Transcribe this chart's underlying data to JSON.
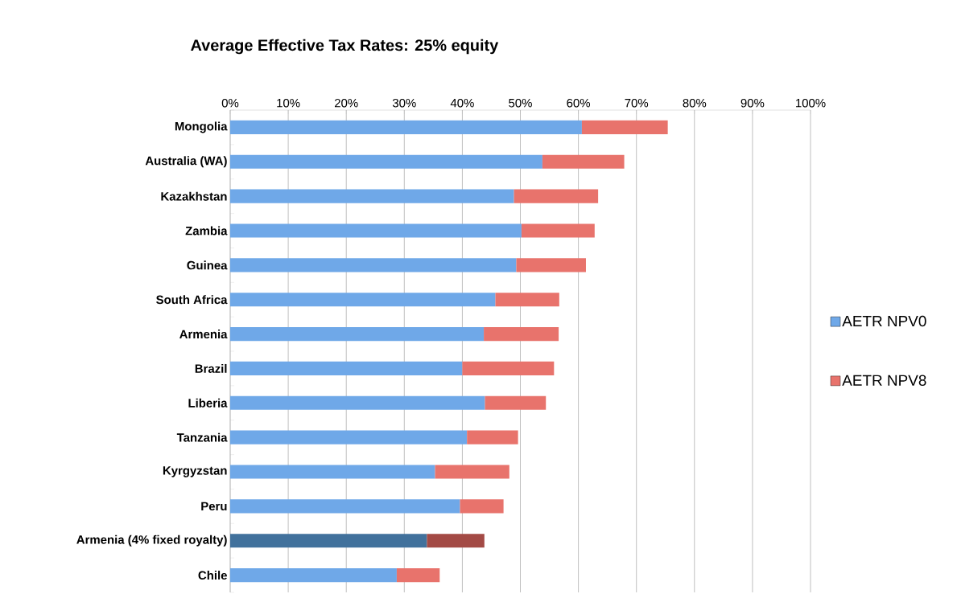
{
  "chart_data": {
    "type": "bar",
    "orientation": "horizontal",
    "stacked": true,
    "title": "Average Effective Tax Rates: 25% equity",
    "categories": [
      "Mongolia",
      "Australia (WA)",
      "Kazakhstan",
      "Zambia",
      "Guinea",
      "South Africa",
      "Armenia",
      "Brazil",
      "Liberia",
      "Tanzania",
      "Kyrgyzstan",
      "Peru",
      "Armenia (4% fixed royalty)",
      "Chile"
    ],
    "series": [
      {
        "name": "AETR NPV0",
        "color": "#6fa8e8",
        "colors": [
          "#6fa8e8",
          "#6fa8e8",
          "#6fa8e8",
          "#6fa8e8",
          "#6fa8e8",
          "#6fa8e8",
          "#6fa8e8",
          "#6fa8e8",
          "#6fa8e8",
          "#6fa8e8",
          "#6fa8e8",
          "#6fa8e8",
          "#41719c",
          "#6fa8e8"
        ],
        "values": [
          60.6,
          53.8,
          48.9,
          50.2,
          49.3,
          45.7,
          43.7,
          40.0,
          43.9,
          40.8,
          35.3,
          39.6,
          33.9,
          28.7
        ]
      },
      {
        "name": "AETR NPV8",
        "color": "#e8736c",
        "colors": [
          "#e8736c",
          "#e8736c",
          "#e8736c",
          "#e8736c",
          "#e8736c",
          "#e8736c",
          "#e8736c",
          "#e8736c",
          "#e8736c",
          "#e8736c",
          "#e8736c",
          "#e8736c",
          "#a34a45",
          "#e8736c"
        ],
        "values": [
          14.8,
          14.1,
          14.5,
          12.6,
          12.0,
          11.0,
          12.9,
          15.8,
          10.5,
          8.8,
          12.8,
          7.5,
          9.9,
          7.4
        ]
      }
    ],
    "xlim": [
      0,
      100
    ],
    "xticks": [
      {
        "value": 0,
        "label": "0%"
      },
      {
        "value": 10,
        "label": "10%"
      },
      {
        "value": 20,
        "label": "20%"
      },
      {
        "value": 30,
        "label": "30%"
      },
      {
        "value": 40,
        "label": "40%"
      },
      {
        "value": 50,
        "label": "50%"
      },
      {
        "value": 60,
        "label": "60%"
      },
      {
        "value": 70,
        "label": "70%"
      },
      {
        "value": 80,
        "label": "80%"
      },
      {
        "value": 90,
        "label": "90%"
      },
      {
        "value": 100,
        "label": "100%"
      }
    ],
    "grid": "x",
    "legend": "right"
  }
}
